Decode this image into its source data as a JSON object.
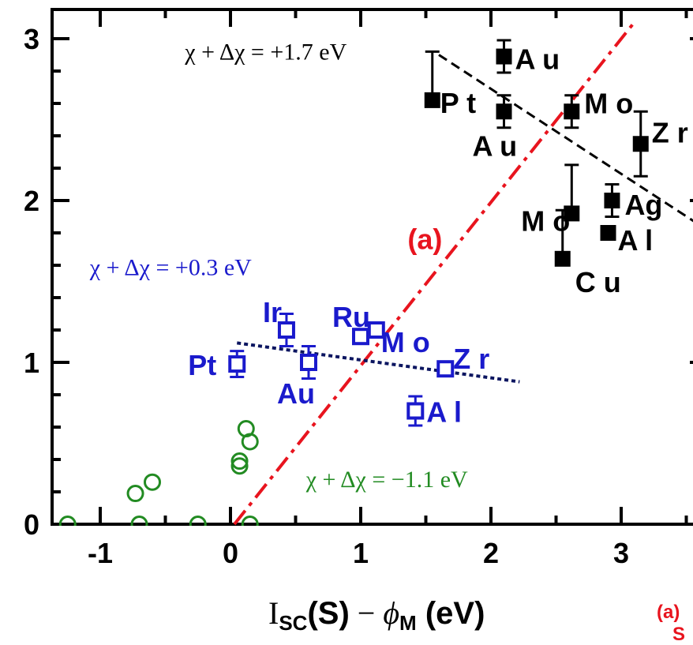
{
  "chart_data": {
    "type": "scatter",
    "xlabel": {
      "main": "I",
      "sub": "SC",
      "paren": "(S)",
      "minus": " − ",
      "phi": "ϕ",
      "phi_sub": "M",
      "unit": " (eV)"
    },
    "xlim": [
      -1.4,
      3.6
    ],
    "ylim": [
      0,
      3.1
    ],
    "xticks": [
      -1,
      0,
      1,
      2,
      3
    ],
    "xtick_labels": [
      "-1",
      "0",
      "1",
      "2",
      "3"
    ],
    "yticks": [
      0,
      1,
      2,
      3
    ],
    "ytick_labels": [
      "0",
      "1",
      "2",
      "3"
    ],
    "grid": false,
    "colors": {
      "black": "#000000",
      "blue": "#1a1acc",
      "green": "#228b22",
      "red": "#e8141e",
      "navy": "#0b1560"
    },
    "series": [
      {
        "marker": "filled-square",
        "color": "#000000",
        "points": [
          {
            "x": 2.1,
            "y": 2.89,
            "err": [
              0.1,
              0.1
            ],
            "label": "A u"
          },
          {
            "x": 1.55,
            "y": 2.62,
            "err": [
              0,
              0.3
            ],
            "label": "P t"
          },
          {
            "x": 2.1,
            "y": 2.55,
            "err": [
              0.1,
              0.1
            ],
            "label": "A u"
          },
          {
            "x": 2.62,
            "y": 2.55,
            "err": [
              0.1,
              0.1
            ],
            "label": "M o"
          },
          {
            "x": 3.15,
            "y": 2.35,
            "err": [
              0.2,
              0.2
            ],
            "label": "Z r"
          },
          {
            "x": 2.62,
            "y": 1.92,
            "err": [
              0,
              0.3
            ],
            "label": "M o"
          },
          {
            "x": 2.93,
            "y": 2.0,
            "err": [
              0.1,
              0.1
            ],
            "label": "Ag"
          },
          {
            "x": 2.9,
            "y": 1.8,
            "err": [
              0,
              0
            ],
            "label": "A l"
          },
          {
            "x": 2.55,
            "y": 1.64,
            "err": [
              0,
              0.3
            ],
            "label": "C u"
          }
        ]
      },
      {
        "marker": "open-square",
        "color": "#1a1acc",
        "points": [
          {
            "x": 0.05,
            "y": 0.99,
            "err": [
              0.08,
              0.08
            ],
            "label": "Pt"
          },
          {
            "x": 0.43,
            "y": 1.2,
            "err": [
              0.1,
              0.1
            ],
            "label": "Ir"
          },
          {
            "x": 0.6,
            "y": 1.0,
            "err": [
              0.1,
              0.1
            ],
            "label": "Au"
          },
          {
            "x": 1.0,
            "y": 1.16,
            "err": [
              0,
              0
            ],
            "label": "Ru"
          },
          {
            "x": 1.12,
            "y": 1.2,
            "err": [
              0,
              0
            ],
            "label": "M o"
          },
          {
            "x": 1.65,
            "y": 0.96,
            "err": [
              0,
              0
            ],
            "label": "Z r"
          },
          {
            "x": 1.42,
            "y": 0.7,
            "err": [
              0.09,
              0.09
            ],
            "label": "A l"
          }
        ]
      },
      {
        "marker": "open-circle",
        "color": "#228b22",
        "points": [
          {
            "x": -1.25,
            "y": 0.0
          },
          {
            "x": -0.73,
            "y": 0.19
          },
          {
            "x": -0.6,
            "y": 0.26
          },
          {
            "x": -0.7,
            "y": 0.0
          },
          {
            "x": -0.25,
            "y": 0.0
          },
          {
            "x": 0.07,
            "y": 0.36
          },
          {
            "x": 0.07,
            "y": 0.39
          },
          {
            "x": 0.12,
            "y": 0.59
          },
          {
            "x": 0.15,
            "y": 0.51
          },
          {
            "x": 0.15,
            "y": 0.0
          }
        ]
      }
    ],
    "lines": [
      {
        "kind": "dash-dot",
        "color": "#e8141e",
        "x": [
          0.03,
          3.1
        ],
        "y": [
          0.0,
          3.1
        ]
      },
      {
        "kind": "dashed",
        "color": "#000000",
        "x": [
          1.6,
          3.6
        ],
        "y": [
          2.9,
          1.85
        ]
      },
      {
        "kind": "dotted",
        "color": "#0b1560",
        "x": [
          0.05,
          2.22
        ],
        "y": [
          1.12,
          0.88
        ]
      }
    ],
    "annotations": [
      {
        "text": "χ + Δχ = +1.7 eV",
        "x": -0.35,
        "y": 2.87,
        "color": "#000000",
        "style": "ann"
      },
      {
        "text": "χ + Δχ = +0.3 eV",
        "x": -1.08,
        "y": 1.54,
        "color": "#1a1acc",
        "style": "ann"
      },
      {
        "text": "χ + Δχ = −1.1 eV",
        "x": 0.58,
        "y": 0.23,
        "color": "#228b22",
        "style": "ann"
      },
      {
        "text": "(a)",
        "x": 1.36,
        "y": 1.7,
        "color": "#e8141e",
        "style": "ann-a"
      }
    ],
    "corner_text": {
      "line1": "(a)",
      "line2": "S"
    }
  }
}
